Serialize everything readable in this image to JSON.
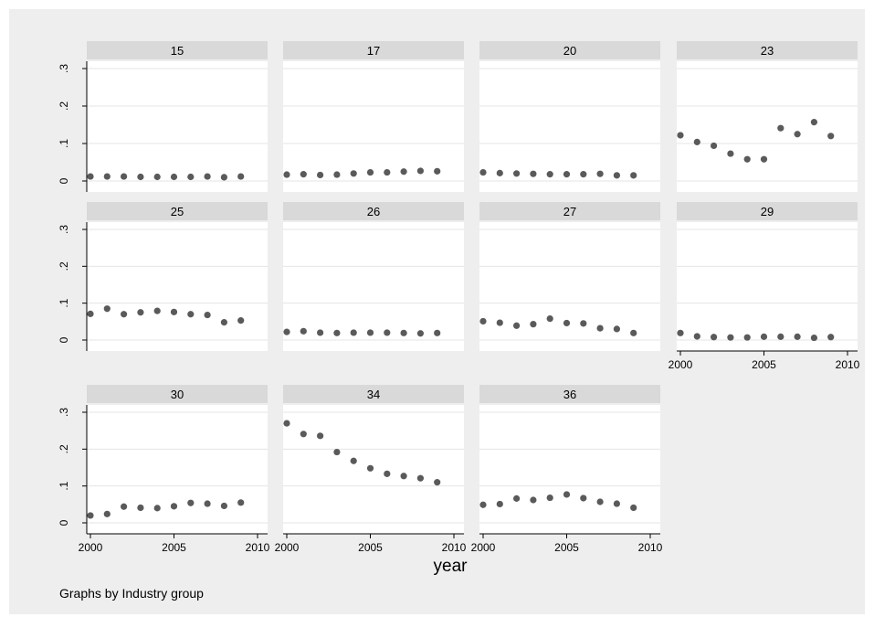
{
  "chart_data": {
    "type": "scatter",
    "note": "Graphs by Industry group",
    "xlabel": "year",
    "ylabel": "",
    "xlim": [
      2000,
      2010
    ],
    "ylim": [
      0,
      0.3
    ],
    "x_ticks": [
      "2000",
      "2005",
      "2010"
    ],
    "y_ticks": [
      "0",
      ".1",
      ".2",
      ".3"
    ],
    "grid": true,
    "colors": {
      "outer_background": "#eeeeee",
      "plot_background": "#ffffff",
      "strip_background": "#d9d9d9",
      "marker": "#5a5a5a",
      "grid": "#e4e4e4",
      "axis": "#000000"
    },
    "x": [
      2000,
      2001,
      2002,
      2003,
      2004,
      2005,
      2006,
      2007,
      2008,
      2009
    ],
    "panels": [
      {
        "label": "15",
        "values": [
          0.012,
          0.012,
          0.012,
          0.011,
          0.011,
          0.011,
          0.011,
          0.012,
          0.01,
          0.012
        ]
      },
      {
        "label": "17",
        "values": [
          0.017,
          0.018,
          0.016,
          0.017,
          0.02,
          0.023,
          0.023,
          0.025,
          0.027,
          0.026
        ]
      },
      {
        "label": "20",
        "values": [
          0.023,
          0.021,
          0.02,
          0.019,
          0.018,
          0.018,
          0.018,
          0.019,
          0.015,
          0.015
        ]
      },
      {
        "label": "23",
        "values": [
          0.122,
          0.104,
          0.094,
          0.073,
          0.058,
          0.058,
          0.141,
          0.125,
          0.157,
          0.12
        ]
      },
      {
        "label": "25",
        "values": [
          0.071,
          0.085,
          0.07,
          0.075,
          0.079,
          0.076,
          0.07,
          0.068,
          0.048,
          0.053
        ]
      },
      {
        "label": "26",
        "values": [
          0.022,
          0.024,
          0.02,
          0.019,
          0.02,
          0.02,
          0.02,
          0.019,
          0.018,
          0.019
        ]
      },
      {
        "label": "27",
        "values": [
          0.051,
          0.047,
          0.039,
          0.043,
          0.058,
          0.046,
          0.045,
          0.032,
          0.03,
          0.019
        ]
      },
      {
        "label": "29",
        "values": [
          0.019,
          0.01,
          0.008,
          0.007,
          0.007,
          0.009,
          0.009,
          0.009,
          0.006,
          0.008
        ]
      },
      {
        "label": "30",
        "values": [
          0.02,
          0.024,
          0.044,
          0.041,
          0.04,
          0.045,
          0.054,
          0.052,
          0.046,
          0.055
        ]
      },
      {
        "label": "34",
        "values": [
          0.27,
          0.241,
          0.236,
          0.192,
          0.168,
          0.148,
          0.133,
          0.127,
          0.121,
          0.11
        ]
      },
      {
        "label": "36",
        "values": [
          0.049,
          0.051,
          0.066,
          0.062,
          0.068,
          0.077,
          0.067,
          0.057,
          0.052,
          0.041
        ]
      }
    ]
  }
}
